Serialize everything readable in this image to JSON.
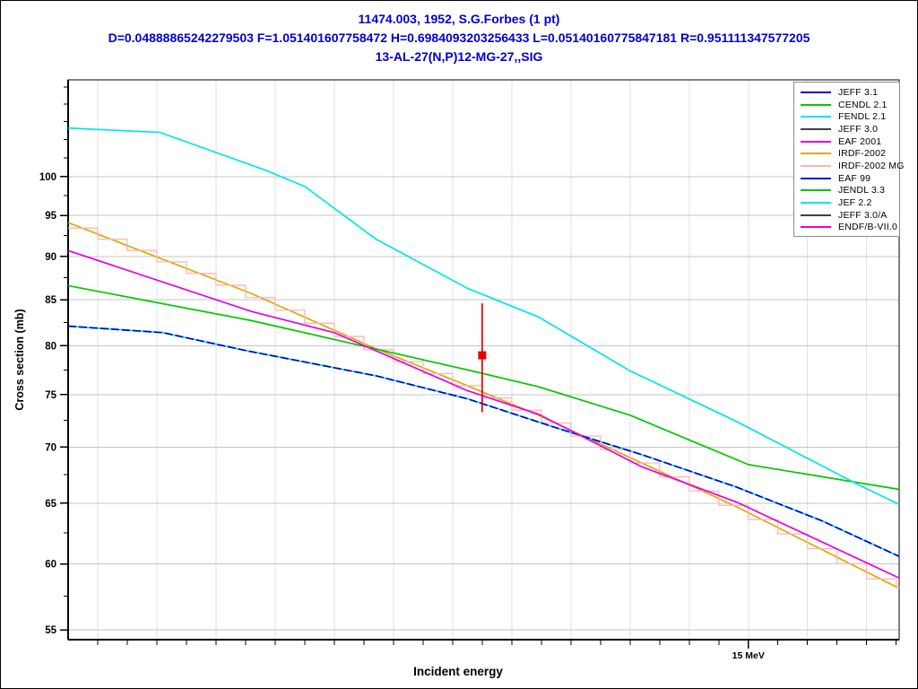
{
  "chart_data": {
    "type": "line",
    "title": "11474.003, 1952, S.G.Forbes (1 pt)",
    "stats_line": "D=0.04888865242279503 F=1.051401607758472 H=0.6984093203256433 L=0.05140160775847181 R=0.951111347577205",
    "reaction": "13-AL-27(N,P)12-MG-27,,SIG",
    "xlabel": "Incident energy",
    "ylabel": "Cross section (mb)",
    "x_axis": {
      "scale": "linear",
      "unit": "MeV",
      "min": 12.7,
      "max": 15.51,
      "minor_tick_step": 0.1,
      "grid_step": 0.2,
      "major_ticks": [
        {
          "value": 15.0,
          "label": "15 MeV"
        }
      ]
    },
    "y_axis": {
      "scale": "log",
      "unit": "mb",
      "min": 54.3,
      "max": 113.6,
      "major_ticks": [
        55,
        60,
        65,
        70,
        75,
        80,
        85,
        90,
        95,
        100
      ],
      "minor_tick_start": 57.5,
      "minor_tick_step": 2.5,
      "minor_tick_max": 112.5
    },
    "grid": true,
    "legend": {
      "position": "top-right",
      "entries": [
        {
          "label": "JEFF 3.1",
          "color": "#0000cd"
        },
        {
          "label": "CENDL 2.1",
          "color": "#00c800"
        },
        {
          "label": "FENDL 2.1",
          "color": "#00e6e6"
        },
        {
          "label": "JEFF 3.0",
          "color": "#404040"
        },
        {
          "label": "EAF 2001",
          "color": "#e600e6"
        },
        {
          "label": "IRDF-2002",
          "color": "#e0a800"
        },
        {
          "label": "IRDF-2002 MG",
          "color": "#ffb4b4"
        },
        {
          "label": "EAF 99",
          "color": "#0000cd"
        },
        {
          "label": "JENDL 3.3",
          "color": "#00c800"
        },
        {
          "label": "JEF 2.2",
          "color": "#00e6e6"
        },
        {
          "label": "JEFF 3.0/A",
          "color": "#404040"
        },
        {
          "label": "ENDF/B-VII.0",
          "color": "#e600e6"
        }
      ]
    },
    "series": [
      {
        "name": "IRDF-2002",
        "color": "#e0a800",
        "render": "line",
        "x": [
          12.7,
          13.32,
          13.74,
          14.05,
          14.29,
          14.96,
          15.51
        ],
        "y": [
          94.1,
          85.7,
          79.7,
          75.9,
          73.0,
          64.7,
          58.1
        ]
      },
      {
        "name": "IRDF-2002 MG",
        "color": "#ffb4b4",
        "render": "histogram",
        "source_series": "IRDF-2002",
        "bin_width": 0.1
      },
      {
        "name": "CENDL 2.1",
        "color": "#00c800",
        "render": "line",
        "coincident_with": [
          "JENDL 3.3"
        ],
        "x": [
          12.7,
          13.32,
          14.05,
          14.29,
          14.6,
          15.0,
          15.51
        ],
        "y": [
          86.6,
          82.7,
          77.5,
          75.8,
          73.0,
          68.4,
          66.2
        ]
      },
      {
        "name": "JEFF 3.1",
        "color": "#0000cd",
        "render": "line",
        "coincident_with": [
          "FENDL 2.1",
          "EAF 99"
        ],
        "underlay_color": "#00e6e6",
        "dash": "9 3",
        "x": [
          12.7,
          13.02,
          13.3,
          13.74,
          14.05,
          14.35,
          14.64,
          14.96,
          15.25,
          15.51
        ],
        "y": [
          82.1,
          81.4,
          79.5,
          76.9,
          74.6,
          71.8,
          69.3,
          66.4,
          63.5,
          60.6
        ]
      },
      {
        "name": "JEF 2.2",
        "color": "#00e6e6",
        "render": "line",
        "x": [
          12.7,
          13.01,
          13.37,
          13.5,
          13.74,
          14.05,
          14.29,
          14.6,
          14.96,
          15.38,
          15.51
        ],
        "y": [
          106.6,
          106.0,
          100.8,
          98.7,
          92.1,
          86.3,
          83.1,
          77.4,
          72.4,
          66.5,
          64.9
        ]
      },
      {
        "name": "EAF 2001",
        "color": "#e600e6",
        "render": "line",
        "coincident_with": [
          "ENDF/B-VII.0",
          "JEFF 3.0",
          "JEFF 3.0/A"
        ],
        "x": [
          12.7,
          13.32,
          13.6,
          14.05,
          14.29,
          14.64,
          14.96,
          15.51
        ],
        "y": [
          90.7,
          83.7,
          81.4,
          75.4,
          73.1,
          68.2,
          65.1,
          58.9
        ]
      }
    ],
    "data_points": [
      {
        "dataset": "11474.003, 1952, S.G.Forbes",
        "x": 14.1,
        "y": 79.0,
        "y_err_low": 73.3,
        "y_err_high": 84.6,
        "marker": "square",
        "color": "#e60000"
      }
    ],
    "style": {
      "background": "#ffffff",
      "title_color": "#0000cd",
      "frame_color": "#000000",
      "grid_color_h": "#c4c4c4",
      "grid_color_v": "#e2e2e2",
      "tick_color": "#000000"
    }
  }
}
